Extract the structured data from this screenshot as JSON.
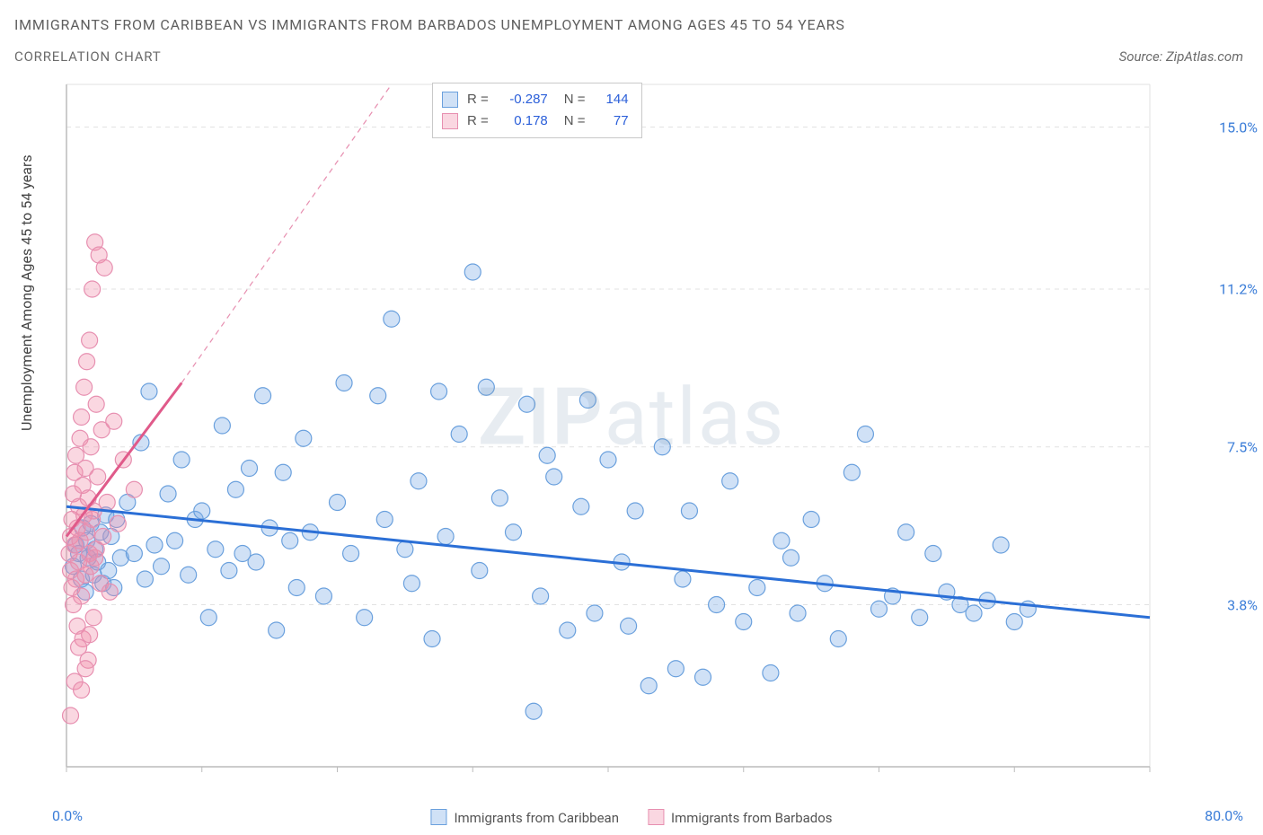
{
  "title_line1": "IMMIGRANTS FROM CARIBBEAN VS IMMIGRANTS FROM BARBADOS UNEMPLOYMENT AMONG AGES 45 TO 54 YEARS",
  "title_line2": "CORRELATION CHART",
  "source_text": "Source: ZipAtlas.com",
  "watermark_a": "ZIP",
  "watermark_b": "atlas",
  "y_axis_label": "Unemployment Among Ages 45 to 54 years",
  "x_min_label": "0.0%",
  "x_max_label": "80.0%",
  "legend_bottom": {
    "series_a": "Immigrants from Caribbean",
    "series_b": "Immigrants from Barbados"
  },
  "stats_box": {
    "r_label": "R =",
    "n_label": "N =",
    "rows": [
      {
        "r": "-0.287",
        "n": "144"
      },
      {
        "r": "0.178",
        "n": "77"
      }
    ]
  },
  "chart": {
    "type": "scatter",
    "background_color": "#ffffff",
    "grid_color": "#e2e2e2",
    "axis_color": "#d0d0d0",
    "tick_label_color": "#3b7dd8",
    "xlim": [
      0,
      80
    ],
    "ylim": [
      0,
      16
    ],
    "x_ticks": [
      0,
      10,
      20,
      30,
      40,
      50,
      60,
      70,
      80
    ],
    "y_ticks": [
      3.8,
      7.5,
      11.2,
      15.0
    ],
    "y_tick_labels": [
      "3.8%",
      "7.5%",
      "11.2%",
      "15.0%"
    ],
    "marker_radius": 9,
    "marker_stroke_width": 1.2,
    "series": [
      {
        "name": "Immigrants from Caribbean",
        "fill": "rgba(120,170,230,0.35)",
        "stroke": "#6aa0dd",
        "trend": {
          "color": "#2b6fd6",
          "width": 3,
          "x1": 0,
          "y1": 6.1,
          "x2": 80,
          "y2": 3.5,
          "dash": null
        },
        "points": [
          [
            0.5,
            4.7
          ],
          [
            0.7,
            5.2
          ],
          [
            0.9,
            5.0
          ],
          [
            1.1,
            4.4
          ],
          [
            1.2,
            5.6
          ],
          [
            1.4,
            4.1
          ],
          [
            1.5,
            5.3
          ],
          [
            1.6,
            4.9
          ],
          [
            1.8,
            5.7
          ],
          [
            2.0,
            4.5
          ],
          [
            2.1,
            5.1
          ],
          [
            2.3,
            4.8
          ],
          [
            2.5,
            5.5
          ],
          [
            2.7,
            4.3
          ],
          [
            2.9,
            5.9
          ],
          [
            3.1,
            4.6
          ],
          [
            3.3,
            5.4
          ],
          [
            3.5,
            4.2
          ],
          [
            3.7,
            5.8
          ],
          [
            4.0,
            4.9
          ],
          [
            4.5,
            6.2
          ],
          [
            5.0,
            5.0
          ],
          [
            5.5,
            7.6
          ],
          [
            5.8,
            4.4
          ],
          [
            6.1,
            8.8
          ],
          [
            6.5,
            5.2
          ],
          [
            7.0,
            4.7
          ],
          [
            7.5,
            6.4
          ],
          [
            8.0,
            5.3
          ],
          [
            8.5,
            7.2
          ],
          [
            9.0,
            4.5
          ],
          [
            9.5,
            5.8
          ],
          [
            10.0,
            6.0
          ],
          [
            10.5,
            3.5
          ],
          [
            11.0,
            5.1
          ],
          [
            11.5,
            8.0
          ],
          [
            12.0,
            4.6
          ],
          [
            12.5,
            6.5
          ],
          [
            13.0,
            5.0
          ],
          [
            13.5,
            7.0
          ],
          [
            14.0,
            4.8
          ],
          [
            14.5,
            8.7
          ],
          [
            15.0,
            5.6
          ],
          [
            15.5,
            3.2
          ],
          [
            16.0,
            6.9
          ],
          [
            16.5,
            5.3
          ],
          [
            17.0,
            4.2
          ],
          [
            17.5,
            7.7
          ],
          [
            18.0,
            5.5
          ],
          [
            19.0,
            4.0
          ],
          [
            20.0,
            6.2
          ],
          [
            20.5,
            9.0
          ],
          [
            21.0,
            5.0
          ],
          [
            22.0,
            3.5
          ],
          [
            23.0,
            8.7
          ],
          [
            23.5,
            5.8
          ],
          [
            24.0,
            10.5
          ],
          [
            25.0,
            5.1
          ],
          [
            25.5,
            4.3
          ],
          [
            26.0,
            6.7
          ],
          [
            27.0,
            3.0
          ],
          [
            27.5,
            8.8
          ],
          [
            28.0,
            5.4
          ],
          [
            29.0,
            7.8
          ],
          [
            30.0,
            11.6
          ],
          [
            30.5,
            4.6
          ],
          [
            31.0,
            8.9
          ],
          [
            32.0,
            6.3
          ],
          [
            33.0,
            5.5
          ],
          [
            34.0,
            8.5
          ],
          [
            34.5,
            1.3
          ],
          [
            35.0,
            4.0
          ],
          [
            35.5,
            7.3
          ],
          [
            36.0,
            6.8
          ],
          [
            37.0,
            3.2
          ],
          [
            38.0,
            6.1
          ],
          [
            38.5,
            8.6
          ],
          [
            39.0,
            3.6
          ],
          [
            40.0,
            7.2
          ],
          [
            41.0,
            4.8
          ],
          [
            41.5,
            3.3
          ],
          [
            42.0,
            6.0
          ],
          [
            43.0,
            1.9
          ],
          [
            44.0,
            7.5
          ],
          [
            45.0,
            2.3
          ],
          [
            45.5,
            4.4
          ],
          [
            46.0,
            6.0
          ],
          [
            47.0,
            2.1
          ],
          [
            48.0,
            3.8
          ],
          [
            49.0,
            6.7
          ],
          [
            50.0,
            3.4
          ],
          [
            51.0,
            4.2
          ],
          [
            52.0,
            2.2
          ],
          [
            52.8,
            5.3
          ],
          [
            53.5,
            4.9
          ],
          [
            54.0,
            3.6
          ],
          [
            55.0,
            5.8
          ],
          [
            56.0,
            4.3
          ],
          [
            57.0,
            3.0
          ],
          [
            58.0,
            6.9
          ],
          [
            59.0,
            7.8
          ],
          [
            60.0,
            3.7
          ],
          [
            61.0,
            4.0
          ],
          [
            62.0,
            5.5
          ],
          [
            63.0,
            3.5
          ],
          [
            64.0,
            5.0
          ],
          [
            65.0,
            4.1
          ],
          [
            66.0,
            3.8
          ],
          [
            67.0,
            3.6
          ],
          [
            68.0,
            3.9
          ],
          [
            69.0,
            5.2
          ],
          [
            70.0,
            3.4
          ],
          [
            71.0,
            3.7
          ]
        ]
      },
      {
        "name": "Immigrants from Barbados",
        "fill": "rgba(240,140,170,0.35)",
        "stroke": "#e78fb0",
        "trend": {
          "color": "#e05a8a",
          "width": 3,
          "x1": 0,
          "y1": 5.4,
          "x2": 8.5,
          "y2": 9.0,
          "dash": null
        },
        "trend_extended": {
          "color": "#e78fb0",
          "width": 1.2,
          "x1": 8.5,
          "y1": 9.0,
          "x2": 24,
          "y2": 16.0,
          "dash": "6 5"
        },
        "points": [
          [
            0.2,
            5.0
          ],
          [
            0.3,
            5.4
          ],
          [
            0.3,
            4.6
          ],
          [
            0.4,
            5.8
          ],
          [
            0.4,
            4.2
          ],
          [
            0.5,
            6.4
          ],
          [
            0.5,
            3.8
          ],
          [
            0.6,
            5.2
          ],
          [
            0.6,
            6.9
          ],
          [
            0.7,
            4.4
          ],
          [
            0.7,
            7.3
          ],
          [
            0.8,
            5.6
          ],
          [
            0.8,
            3.3
          ],
          [
            0.9,
            6.1
          ],
          [
            0.9,
            4.8
          ],
          [
            1.0,
            7.7
          ],
          [
            1.0,
            5.3
          ],
          [
            1.1,
            8.2
          ],
          [
            1.1,
            4.0
          ],
          [
            1.2,
            6.6
          ],
          [
            1.2,
            3.0
          ],
          [
            1.3,
            5.9
          ],
          [
            1.3,
            8.9
          ],
          [
            1.4,
            4.5
          ],
          [
            1.4,
            7.0
          ],
          [
            1.5,
            5.5
          ],
          [
            1.5,
            9.5
          ],
          [
            1.6,
            6.3
          ],
          [
            1.6,
            2.5
          ],
          [
            1.7,
            10.0
          ],
          [
            1.7,
            5.0
          ],
          [
            1.8,
            4.7
          ],
          [
            1.8,
            7.5
          ],
          [
            1.9,
            11.2
          ],
          [
            1.9,
            5.8
          ],
          [
            2.0,
            6.0
          ],
          [
            2.0,
            3.5
          ],
          [
            2.1,
            12.3
          ],
          [
            2.1,
            4.9
          ],
          [
            2.2,
            8.5
          ],
          [
            2.2,
            5.1
          ],
          [
            2.3,
            6.8
          ],
          [
            2.4,
            12.0
          ],
          [
            2.5,
            4.3
          ],
          [
            2.6,
            7.9
          ],
          [
            2.7,
            5.4
          ],
          [
            2.8,
            11.7
          ],
          [
            3.0,
            6.2
          ],
          [
            3.2,
            4.1
          ],
          [
            3.5,
            8.1
          ],
          [
            3.8,
            5.7
          ],
          [
            4.2,
            7.2
          ],
          [
            5.0,
            6.5
          ],
          [
            0.3,
            1.2
          ],
          [
            0.6,
            2.0
          ],
          [
            0.9,
            2.8
          ],
          [
            1.1,
            1.8
          ],
          [
            1.4,
            2.3
          ],
          [
            1.7,
            3.1
          ]
        ]
      }
    ]
  }
}
